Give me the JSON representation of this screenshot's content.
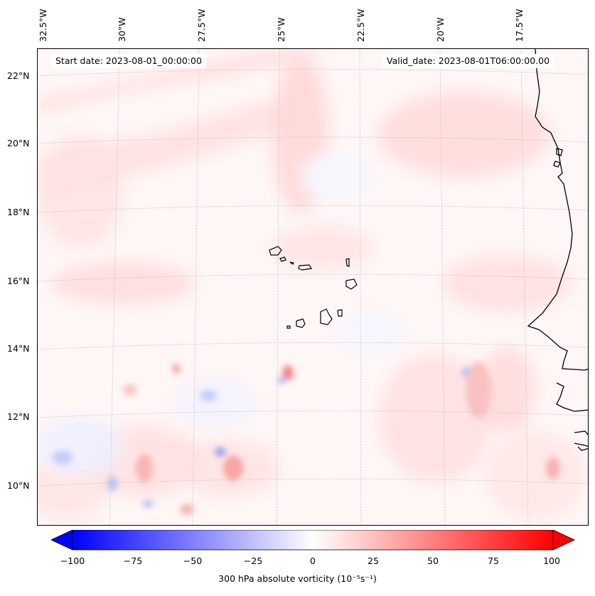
{
  "map": {
    "title_left": "Start date: 2023-08-01_00:00:00",
    "title_right": "Valid_date: 2023-08-01T06:00:00.00",
    "lon_labels": [
      "32.5°W",
      "30°W",
      "27.5°W",
      "25°W",
      "22.5°W",
      "20°W",
      "17.5°W"
    ],
    "lat_labels": [
      "22°N",
      "20°N",
      "18°N",
      "16°N",
      "14°N",
      "12°N",
      "10°N"
    ],
    "projection_extent": "approx. 33°W–16.5°W, 8.8°N–22.8°N",
    "features": [
      "Cape Verde islands",
      "West African coastline"
    ],
    "gridlines": true,
    "field_colors": {
      "negative": "#0000ff",
      "zero": "#ffffff",
      "positive": "#ff0000"
    }
  },
  "colorbar": {
    "label": "300 hPa absolute vorticity (10⁻⁵s⁻¹)",
    "ticks": [
      "−100",
      "−75",
      "−50",
      "−25",
      "0",
      "25",
      "50",
      "75",
      "100"
    ],
    "range": [
      -100,
      100
    ],
    "extend": "both",
    "cmap": "bwr"
  }
}
